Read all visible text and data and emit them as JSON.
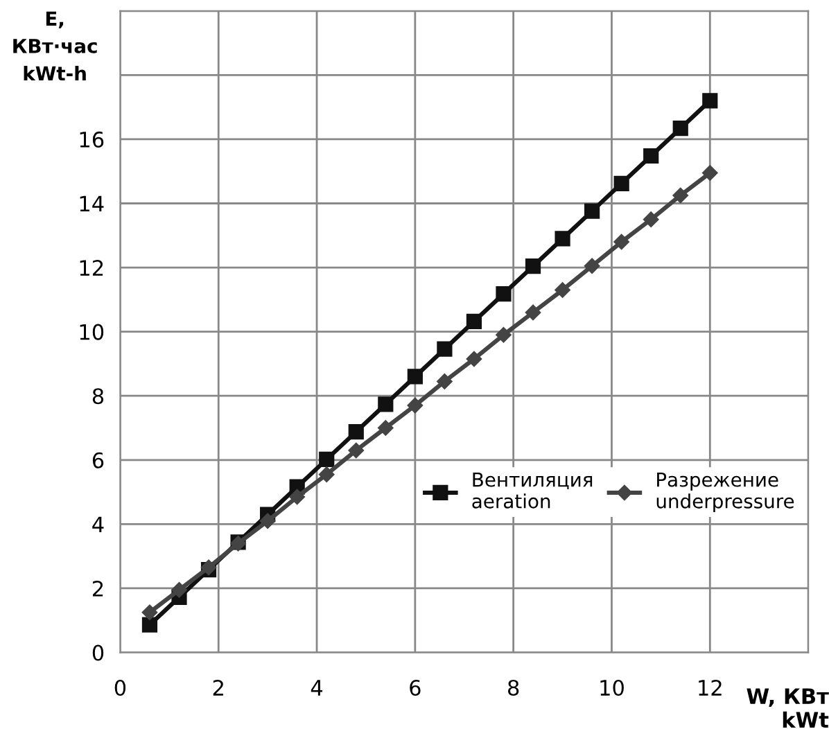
{
  "chart_data": {
    "type": "line",
    "xlabel": "W, КВт\nkWt",
    "ylabel": "E,\nКВт·час\nkWt-h",
    "x": [
      0.6,
      1.2,
      1.8,
      2.4,
      3.0,
      3.6,
      4.2,
      4.8,
      5.4,
      6.0,
      6.6,
      7.2,
      7.8,
      8.4,
      9.0,
      9.6,
      10.2,
      10.8,
      11.4,
      12.0
    ],
    "series": [
      {
        "name": "Вентиляция\naeration",
        "color": "#111111",
        "marker": "square",
        "values": [
          0.86,
          1.72,
          2.58,
          3.44,
          4.3,
          5.16,
          6.02,
          6.88,
          7.74,
          8.6,
          9.46,
          10.32,
          11.18,
          12.04,
          12.9,
          13.76,
          14.62,
          15.48,
          16.34,
          17.2
        ]
      },
      {
        "name": "Разрежение\nunderpressure",
        "color": "#444444",
        "marker": "diamond",
        "values": [
          1.25,
          1.95,
          2.65,
          3.4,
          4.1,
          4.85,
          5.55,
          6.3,
          7.0,
          7.7,
          8.45,
          9.15,
          9.9,
          10.6,
          11.3,
          12.05,
          12.8,
          13.5,
          14.25,
          14.95
        ]
      }
    ],
    "xlim": [
      0,
      14
    ],
    "xticks": [
      0,
      2,
      4,
      6,
      8,
      10,
      12,
      {
        "value": 14,
        "label": null
      }
    ],
    "ylim": [
      0,
      20
    ],
    "yticks": [
      0,
      2,
      4,
      6,
      8,
      10,
      12,
      14,
      16,
      {
        "value": 18,
        "label": null
      },
      {
        "value": 20,
        "label": null
      }
    ],
    "grid": true,
    "legend": "right",
    "line_style": "solid"
  }
}
